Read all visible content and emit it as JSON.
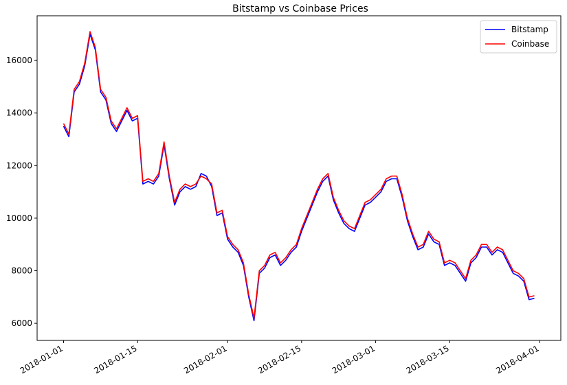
{
  "chart_data": {
    "type": "line",
    "title": "Bitstamp vs Coinbase Prices",
    "xlabel": "",
    "ylabel": "",
    "x_ticks": [
      "2018-01-01",
      "2018-01-15",
      "2018-02-01",
      "2018-02-15",
      "2018-03-01",
      "2018-03-15",
      "2018-04-01"
    ],
    "y_ticks": [
      6000,
      8000,
      10000,
      12000,
      14000,
      16000
    ],
    "xlim": [
      "2017-12-27",
      "2018-04-05"
    ],
    "ylim": [
      5350,
      17700
    ],
    "legend_position": "top-right",
    "grid": false,
    "series": [
      {
        "name": "Bitstamp",
        "color": "#0000ff",
        "x": [
          "2018-01-01",
          "2018-01-02",
          "2018-01-03",
          "2018-01-04",
          "2018-01-05",
          "2018-01-06",
          "2018-01-07",
          "2018-01-08",
          "2018-01-09",
          "2018-01-10",
          "2018-01-11",
          "2018-01-12",
          "2018-01-13",
          "2018-01-14",
          "2018-01-15",
          "2018-01-16",
          "2018-01-17",
          "2018-01-18",
          "2018-01-19",
          "2018-01-20",
          "2018-01-21",
          "2018-01-22",
          "2018-01-23",
          "2018-01-24",
          "2018-01-25",
          "2018-01-26",
          "2018-01-27",
          "2018-01-28",
          "2018-01-29",
          "2018-01-30",
          "2018-01-31",
          "2018-02-01",
          "2018-02-02",
          "2018-02-03",
          "2018-02-04",
          "2018-02-05",
          "2018-02-06",
          "2018-02-07",
          "2018-02-08",
          "2018-02-09",
          "2018-02-10",
          "2018-02-11",
          "2018-02-12",
          "2018-02-13",
          "2018-02-14",
          "2018-02-15",
          "2018-02-16",
          "2018-02-17",
          "2018-02-18",
          "2018-02-19",
          "2018-02-20",
          "2018-02-21",
          "2018-02-22",
          "2018-02-23",
          "2018-02-24",
          "2018-02-25",
          "2018-02-26",
          "2018-02-27",
          "2018-02-28",
          "2018-03-01",
          "2018-03-02",
          "2018-03-03",
          "2018-03-04",
          "2018-03-05",
          "2018-03-06",
          "2018-03-07",
          "2018-03-08",
          "2018-03-09",
          "2018-03-10",
          "2018-03-11",
          "2018-03-12",
          "2018-03-13",
          "2018-03-14",
          "2018-03-15",
          "2018-03-16",
          "2018-03-17",
          "2018-03-18",
          "2018-03-19",
          "2018-03-20",
          "2018-03-21",
          "2018-03-22",
          "2018-03-23",
          "2018-03-24",
          "2018-03-25",
          "2018-03-26",
          "2018-03-27",
          "2018-03-28",
          "2018-03-29",
          "2018-03-30",
          "2018-03-31"
        ],
        "values": [
          13500,
          13100,
          14800,
          15100,
          15800,
          17000,
          16400,
          14800,
          14500,
          13600,
          13300,
          13700,
          14100,
          13700,
          13800,
          11300,
          11400,
          11300,
          11600,
          12800,
          11500,
          10500,
          11000,
          11200,
          11100,
          11200,
          11700,
          11600,
          11200,
          10100,
          10200,
          9200,
          8900,
          8700,
          8200,
          7000,
          6100,
          7900,
          8100,
          8500,
          8600,
          8200,
          8400,
          8700,
          8900,
          9500,
          10000,
          10500,
          11000,
          11400,
          11600,
          10700,
          10200,
          9800,
          9600,
          9500,
          10000,
          10500,
          10600,
          10800,
          11000,
          11400,
          11500,
          11500,
          10800,
          9900,
          9300,
          8800,
          8900,
          9400,
          9100,
          9000,
          8200,
          8300,
          8200,
          7900,
          7600,
          8300,
          8500,
          8900,
          8900,
          8600,
          8800,
          8700,
          8300,
          7900,
          7800,
          7600,
          6900,
          6950
        ],
        "lw": 1.6
      },
      {
        "name": "Coinbase",
        "color": "#ff0000",
        "x": [
          "2018-01-01",
          "2018-01-02",
          "2018-01-03",
          "2018-01-04",
          "2018-01-05",
          "2018-01-06",
          "2018-01-07",
          "2018-01-08",
          "2018-01-09",
          "2018-01-10",
          "2018-01-11",
          "2018-01-12",
          "2018-01-13",
          "2018-01-14",
          "2018-01-15",
          "2018-01-16",
          "2018-01-17",
          "2018-01-18",
          "2018-01-19",
          "2018-01-20",
          "2018-01-21",
          "2018-01-22",
          "2018-01-23",
          "2018-01-24",
          "2018-01-25",
          "2018-01-26",
          "2018-01-27",
          "2018-01-28",
          "2018-01-29",
          "2018-01-30",
          "2018-01-31",
          "2018-02-01",
          "2018-02-02",
          "2018-02-03",
          "2018-02-04",
          "2018-02-05",
          "2018-02-06",
          "2018-02-07",
          "2018-02-08",
          "2018-02-09",
          "2018-02-10",
          "2018-02-11",
          "2018-02-12",
          "2018-02-13",
          "2018-02-14",
          "2018-02-15",
          "2018-02-16",
          "2018-02-17",
          "2018-02-18",
          "2018-02-19",
          "2018-02-20",
          "2018-02-21",
          "2018-02-22",
          "2018-02-23",
          "2018-02-24",
          "2018-02-25",
          "2018-02-26",
          "2018-02-27",
          "2018-02-28",
          "2018-03-01",
          "2018-03-02",
          "2018-03-03",
          "2018-03-04",
          "2018-03-05",
          "2018-03-06",
          "2018-03-07",
          "2018-03-08",
          "2018-03-09",
          "2018-03-10",
          "2018-03-11",
          "2018-03-12",
          "2018-03-13",
          "2018-03-14",
          "2018-03-15",
          "2018-03-16",
          "2018-03-17",
          "2018-03-18",
          "2018-03-19",
          "2018-03-20",
          "2018-03-21",
          "2018-03-22",
          "2018-03-23",
          "2018-03-24",
          "2018-03-25",
          "2018-03-26",
          "2018-03-27",
          "2018-03-28",
          "2018-03-29",
          "2018-03-30",
          "2018-03-31"
        ],
        "values": [
          13600,
          13200,
          14900,
          15200,
          15900,
          17100,
          16500,
          14900,
          14600,
          13700,
          13400,
          13800,
          14200,
          13800,
          13900,
          11400,
          11500,
          11400,
          11700,
          12900,
          11600,
          10600,
          11100,
          11300,
          11200,
          11300,
          11600,
          11500,
          11300,
          10200,
          10300,
          9300,
          9000,
          8800,
          8300,
          7100,
          6200,
          8000,
          8200,
          8600,
          8700,
          8300,
          8500,
          8800,
          9000,
          9600,
          10100,
          10600,
          11100,
          11500,
          11700,
          10800,
          10300,
          9900,
          9700,
          9600,
          10100,
          10600,
          10700,
          10900,
          11100,
          11500,
          11600,
          11600,
          10900,
          10000,
          9400,
          8900,
          9000,
          9500,
          9200,
          9100,
          8300,
          8400,
          8300,
          8000,
          7700,
          8400,
          8600,
          9000,
          9000,
          8700,
          8900,
          8800,
          8400,
          8000,
          7900,
          7700,
          7000,
          7050
        ],
        "lw": 1.6
      }
    ]
  }
}
